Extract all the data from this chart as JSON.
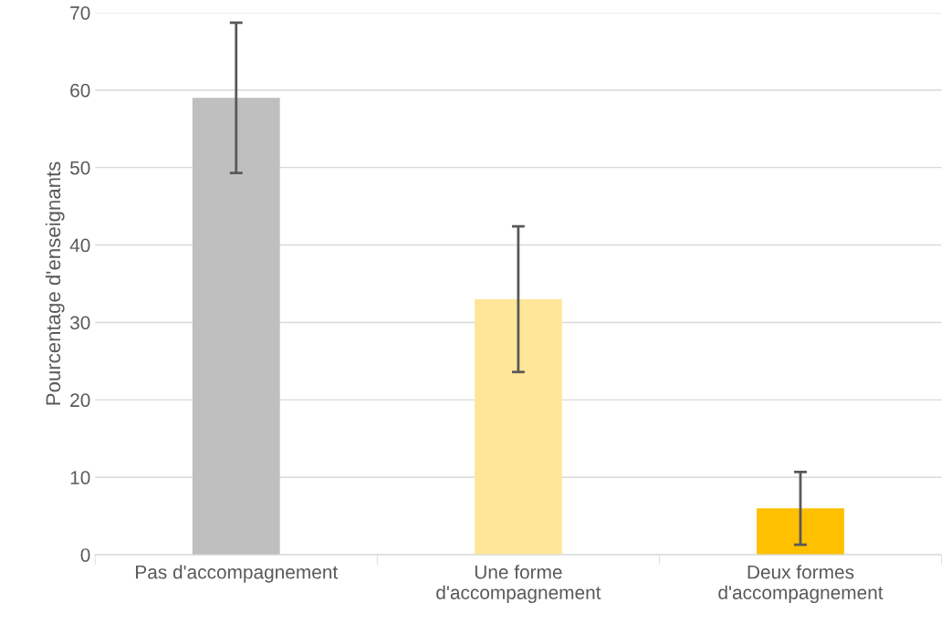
{
  "chart_data": {
    "type": "bar",
    "ylabel": "Pourcentage d'enseignants",
    "categories": [
      "Pas d'accompagnement",
      "Une forme\nd'accompagnement",
      "Deux formes\nd'accompagnement"
    ],
    "values": [
      59,
      33,
      6
    ],
    "errors": [
      9.7,
      9.4,
      4.7
    ],
    "colors": [
      "#bfbfbf",
      "#ffe699",
      "#ffc000"
    ],
    "ylim": [
      0,
      70
    ],
    "yticks": [
      0,
      10,
      20,
      30,
      40,
      50,
      60,
      70
    ],
    "grid": "y"
  }
}
